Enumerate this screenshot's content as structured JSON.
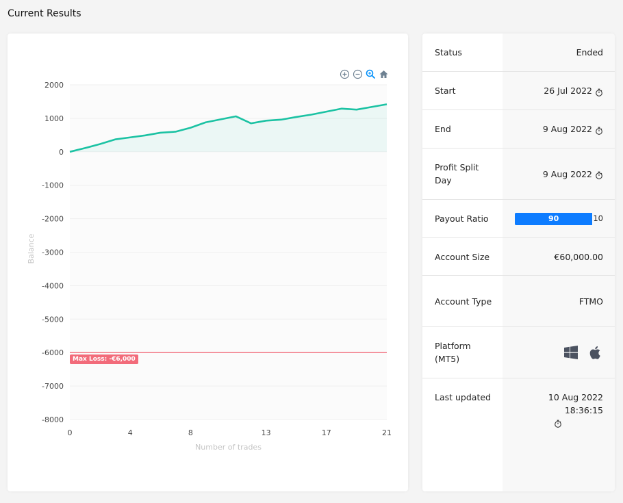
{
  "page": {
    "title": "Current Results"
  },
  "chart_data": {
    "type": "area",
    "x": [
      0,
      1,
      2,
      3,
      4,
      5,
      6,
      7,
      8,
      9,
      10,
      11,
      12,
      13,
      14,
      15,
      16,
      17,
      18,
      19,
      20,
      21
    ],
    "series": [
      {
        "values": [
          0,
          110,
          230,
          370,
          430,
          490,
          570,
          600,
          720,
          880,
          970,
          1060,
          850,
          930,
          960,
          1040,
          1110,
          1200,
          1290,
          1260,
          1340,
          1420
        ]
      }
    ],
    "xticks": [
      0,
      4,
      8,
      13,
      17,
      21
    ],
    "yticks": [
      2000,
      1000,
      0,
      -1000,
      -2000,
      -3000,
      -4000,
      -5000,
      -6000,
      -7000,
      -8000
    ],
    "xlim": [
      0,
      21
    ],
    "ylim": [
      -8000,
      2000
    ],
    "xlabel": "Number of trades",
    "ylabel": "Balance",
    "annotations": [
      {
        "y": -6000,
        "label": "Max Loss: -€6,000",
        "color": "#f26b7a"
      }
    ],
    "line_color": "#1bc2a3",
    "grid": true
  },
  "toolbar": {
    "zoom_in": "zoom-in-icon",
    "zoom_out": "zoom-out-icon",
    "zoom_select": "zoom-select-icon",
    "reset": "home-icon"
  },
  "info": {
    "status_label": "Status",
    "status_value": "Ended",
    "start_label": "Start",
    "start_value": "26 Jul 2022",
    "end_label": "End",
    "end_value": "9 Aug 2022",
    "split_label": "Profit Split Day",
    "split_value": "9 Aug 2022",
    "payout_label": "Payout Ratio",
    "payout_main": "90",
    "payout_rest": "10",
    "payout_fraction": 0.9,
    "size_label": "Account Size",
    "size_value": "€60,000.00",
    "type_label": "Account Type",
    "type_value": "FTMO",
    "platform_label": "Platform (MT5)",
    "platform_icons": [
      "windows-icon",
      "apple-icon"
    ],
    "updated_label": "Last updated",
    "updated_value": "10 Aug 2022 18:36:15"
  }
}
